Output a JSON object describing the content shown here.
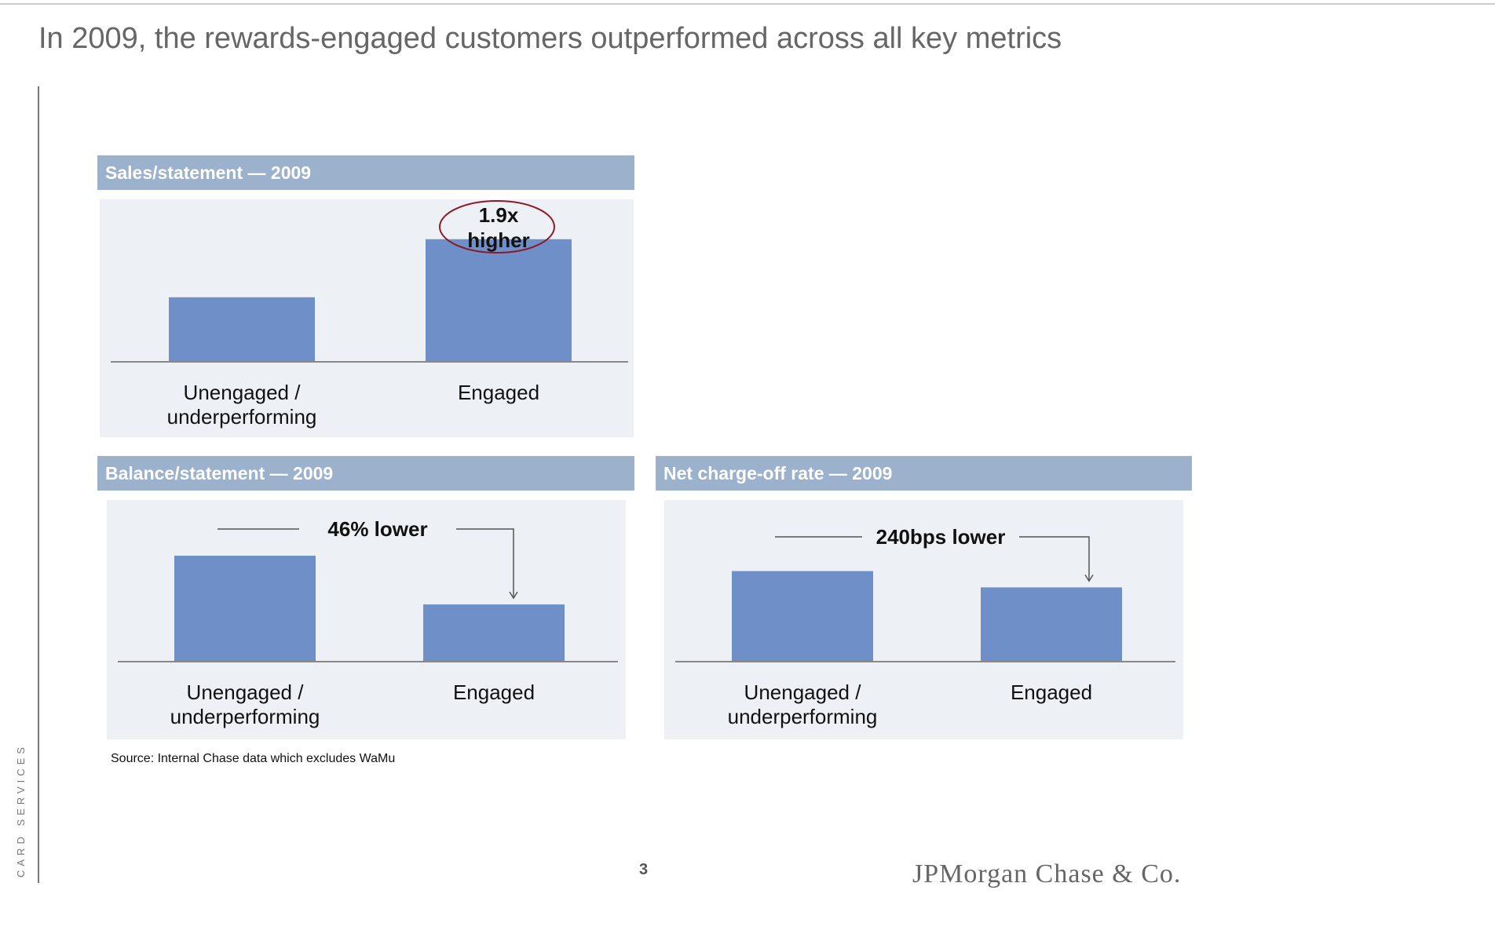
{
  "slide": {
    "title": "In 2009, the rewards-engaged customers outperformed across all key metrics",
    "side_label": "CARD SERVICES",
    "source": "Source: Internal Chase data which excludes WaMu",
    "page_number": "3",
    "logo_text": "JPMorgan Chase & Co.",
    "colors": {
      "bar": "#6e8fc7",
      "header": "#9bb1cc",
      "panel": "#edf1f5",
      "highlight_circle": "#8b1a2a"
    }
  },
  "chart_data": [
    {
      "type": "bar",
      "title": "Sales/statement — 2009",
      "categories": [
        "Unengaged / underperforming",
        "Engaged"
      ],
      "category_lines": [
        [
          "Unengaged /",
          "underperforming"
        ],
        [
          "Engaged"
        ]
      ],
      "values": [
        1,
        1.9
      ],
      "ylim": [
        0,
        2.25
      ],
      "annotation": {
        "lines": [
          "1.9x",
          "higher"
        ],
        "style": "circled"
      },
      "grid": false
    },
    {
      "type": "bar",
      "title": "Balance/statement — 2009",
      "categories": [
        "Unengaged / underperforming",
        "Engaged"
      ],
      "category_lines": [
        [
          "Unengaged /",
          "underperforming"
        ],
        [
          "Engaged"
        ]
      ],
      "values": [
        1,
        0.54
      ],
      "ylim": [
        0,
        1.2
      ],
      "annotation": {
        "lines": [
          "46% lower"
        ],
        "style": "arrow"
      },
      "grid": false
    },
    {
      "type": "bar",
      "title": "Net charge-off rate — 2009",
      "categories": [
        "Unengaged / underperforming",
        "Engaged"
      ],
      "category_lines": [
        [
          "Unengaged /",
          "underperforming"
        ],
        [
          "Engaged"
        ]
      ],
      "values": [
        1,
        0.82
      ],
      "ylim": [
        0,
        1.3
      ],
      "annotation": {
        "lines": [
          "240bps lower"
        ],
        "style": "arrow"
      },
      "grid": false
    }
  ]
}
